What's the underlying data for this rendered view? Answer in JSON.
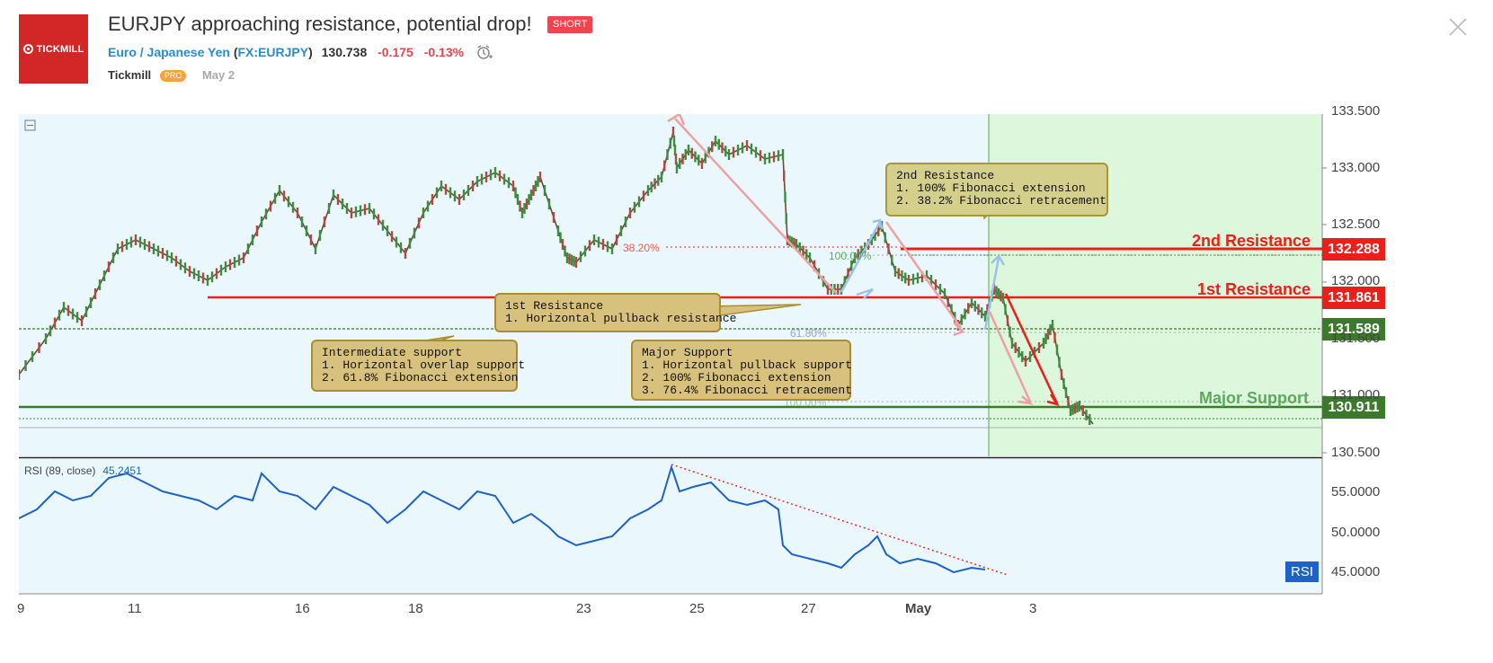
{
  "header": {
    "logo_text": "TICKMILL",
    "title": "EURJPY approaching resistance, potential drop!",
    "badge": "SHORT",
    "symbol_name": "Euro / Japanese Yen",
    "symbol_code": "FX:EURJPY",
    "price": "130.738",
    "change": "-0.175",
    "change_pct": "-0.13%",
    "author": "Tickmill",
    "author_badge": "PRO",
    "date": "May 2",
    "icons": [
      "alarm-clock-icon",
      "close-icon"
    ]
  },
  "levels": {
    "resistance2": {
      "label": "2nd Resistance",
      "price": "132.288",
      "color": "#e8201c"
    },
    "resistance1": {
      "label": "1st Resistance",
      "price": "131.861",
      "color": "#e8201c"
    },
    "support_intermediate": {
      "price": "131.589",
      "color": "#3b7a2a"
    },
    "support_major": {
      "label": "Major Support",
      "price": "130.911",
      "color": "#3b7a2a"
    }
  },
  "callouts": {
    "res2": {
      "title": "2nd Resistance",
      "lines": [
        "1. 100% Fibonacci extension",
        "2. 38.2% Fibonacci retracement"
      ]
    },
    "res1": {
      "title": "1st Resistance",
      "lines": [
        "1. Horizontal pullback resistance"
      ]
    },
    "intermediate": {
      "title": "Intermediate support",
      "lines": [
        "1. Horizontal overlap support",
        "2. 61.8% Fibonacci extension"
      ]
    },
    "major": {
      "title": "Major Support",
      "lines": [
        "1. Horizontal pullback support",
        "2. 100% Fibonacci extension",
        "3. 76.4% Fibonacci retracement"
      ]
    }
  },
  "fib_labels": {
    "f382": "38.20%",
    "f100a": "100.00%",
    "f618": "61.80%",
    "f100b": "100.00%"
  },
  "price_axis": [
    "133.500",
    "133.000",
    "132.500",
    "132.000",
    "131.500",
    "131.000",
    "130.500"
  ],
  "rsi": {
    "label": "RSI (89, close)",
    "value": "45.2451",
    "badge": "RSI",
    "axis": [
      "55.0000",
      "50.0000",
      "45.0000"
    ]
  },
  "date_axis": [
    "9",
    "11",
    "16",
    "18",
    "23",
    "25",
    "27",
    "May",
    "3"
  ],
  "colors": {
    "plot_bg": "#eaf8fd",
    "forecast_bg": "#dcf7dc",
    "rsi_line": "#1e62c8"
  }
}
